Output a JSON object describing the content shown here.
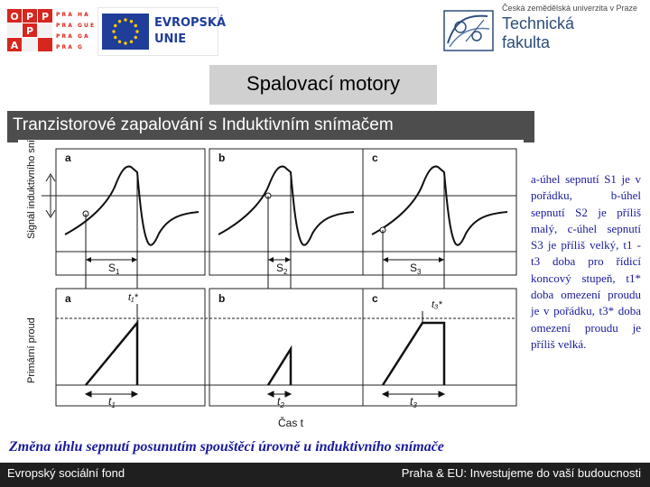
{
  "header": {
    "opp_letters": [
      "O",
      "P",
      "P",
      "P",
      "R",
      "A",
      "H",
      "A"
    ],
    "opp_grid": [
      "P R A",
      "P R A",
      "P R A",
      "P R A"
    ],
    "opp_grid2": [
      "H A",
      "G U E",
      "G A",
      "G"
    ],
    "eu_text_line1": "EVROPSKÁ",
    "eu_text_line2": "UNIE",
    "university_small": "Česká zemědělská univerzita v Praze",
    "faculty_line1": "Technická",
    "faculty_line2": "fakulta"
  },
  "title": "Spalovací motory",
  "subtitle": "Tranzistorové zapalování s Induktivním snímačem",
  "diagram": {
    "y_label_top": "Signál induktivního snímače",
    "y_label_bottom": "Primární proud",
    "panels_top": [
      "a",
      "b",
      "c"
    ],
    "panels_bottom": [
      "a",
      "b",
      "c"
    ],
    "s_labels": [
      "S",
      "S",
      "S"
    ],
    "s_subs": [
      "1",
      "2",
      "3"
    ],
    "t_labels": [
      "t",
      "t",
      "t"
    ],
    "t_subs": [
      "1",
      "2",
      "3"
    ],
    "t_star_labels": [
      "t₁*",
      "t₃*"
    ],
    "time_label": "Čas t"
  },
  "description": "a-úhel sepnutí S1 je v pořádku, b-úhel sepnutí S2 je příliš malý, c-úhel sepnutí S3 je příliš velký, t1 - t3 doba pro řídicí koncový stupeň, t1* doba omezení proudu je v pořádku, t3* doba omezení proudu je příliš velká.",
  "footnote": "Změna úhlu sepnutí posunutím spouštěcí úrovně u induktivního snímače",
  "footer": {
    "left": "Evropský sociální fond",
    "right": "Praha & EU: Investujeme do vaší budoucnosti"
  },
  "colors": {
    "opp_red": "#d7261e",
    "eu_blue": "#1f3d99",
    "eu_star": "#ffcc00",
    "text_blue": "#1a1a9a",
    "subtitle_bg": "#4d4d4d",
    "title_bg": "#d0d0d0"
  }
}
